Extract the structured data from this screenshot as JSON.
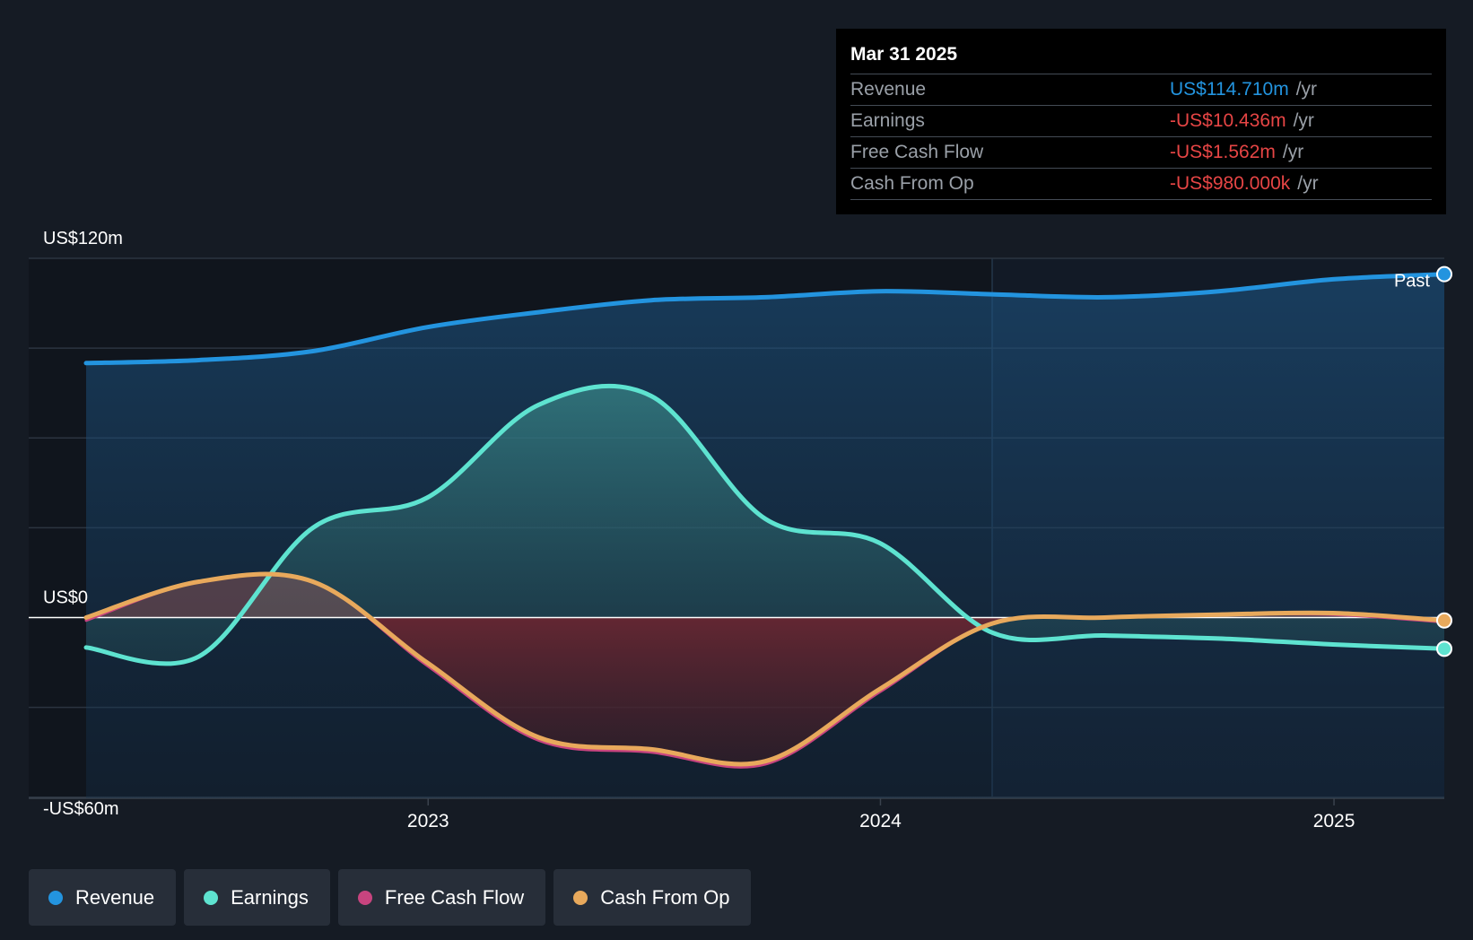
{
  "chart_data": {
    "type": "area",
    "y_axis_labels": [
      "US$120m",
      "US$0",
      "-US$60m"
    ],
    "x_ticks": [
      "2023",
      "2024",
      "2025"
    ],
    "ylim": [
      -60,
      120
    ],
    "past_label": "Past",
    "grid": true,
    "series": [
      {
        "name": "Revenue",
        "color": "#2394df",
        "x": [
          "2022-03-31",
          "2022-06-30",
          "2022-09-30",
          "2022-12-31",
          "2023-03-31",
          "2023-06-30",
          "2023-09-30",
          "2023-12-31",
          "2024-03-31",
          "2024-06-30",
          "2024-09-30",
          "2024-12-31",
          "2025-03-31"
        ],
        "y": [
          85,
          86,
          89,
          97,
          102,
          106,
          107,
          109,
          108,
          107,
          109,
          113,
          114.71
        ]
      },
      {
        "name": "Earnings",
        "color": "#5ee3d0",
        "x": [
          "2022-03-31",
          "2022-06-30",
          "2022-09-30",
          "2022-12-31",
          "2023-03-31",
          "2023-06-30",
          "2023-09-30",
          "2023-12-31",
          "2024-03-31",
          "2024-06-30",
          "2024-09-30",
          "2024-12-31",
          "2025-03-31"
        ],
        "y": [
          -10,
          -13,
          30,
          40,
          71,
          74,
          33,
          25,
          -5,
          -6,
          -7,
          -9,
          -10.436
        ]
      },
      {
        "name": "Free Cash Flow",
        "color": "#c8447f",
        "x": [
          "2022-03-31",
          "2022-06-30",
          "2022-09-30",
          "2022-12-31",
          "2023-03-31",
          "2023-06-30",
          "2023-09-30",
          "2023-12-31",
          "2024-03-31",
          "2024-06-30",
          "2024-09-30",
          "2024-12-31",
          "2025-03-31"
        ],
        "y": [
          -1,
          12,
          12,
          -16,
          -41,
          -45,
          -49,
          -25,
          -2,
          0,
          1,
          1,
          -1.562
        ]
      },
      {
        "name": "Cash From Op",
        "color": "#e8a95c",
        "x": [
          "2022-03-31",
          "2022-06-30",
          "2022-09-30",
          "2022-12-31",
          "2023-03-31",
          "2023-06-30",
          "2023-09-30",
          "2023-12-31",
          "2024-03-31",
          "2024-06-30",
          "2024-09-30",
          "2024-12-31",
          "2025-03-31"
        ],
        "y": [
          0,
          12,
          12,
          -15,
          -40,
          -44,
          -48,
          -24,
          -2,
          0,
          1,
          1.5,
          -0.98
        ]
      }
    ]
  },
  "tooltip": {
    "date": "Mar 31 2025",
    "rows": [
      {
        "label": "Revenue",
        "value": "US$114.710m",
        "unit": "/yr",
        "color": "#2394df"
      },
      {
        "label": "Earnings",
        "value": "-US$10.436m",
        "unit": "/yr",
        "color": "#e64545"
      },
      {
        "label": "Free Cash Flow",
        "value": "-US$1.562m",
        "unit": "/yr",
        "color": "#e64545"
      },
      {
        "label": "Cash From Op",
        "value": "-US$980.000k",
        "unit": "/yr",
        "color": "#e64545"
      }
    ]
  },
  "legend": [
    {
      "label": "Revenue",
      "color": "#2394df"
    },
    {
      "label": "Earnings",
      "color": "#5ee3d0"
    },
    {
      "label": "Free Cash Flow",
      "color": "#c8447f"
    },
    {
      "label": "Cash From Op",
      "color": "#e8a95c"
    }
  ]
}
